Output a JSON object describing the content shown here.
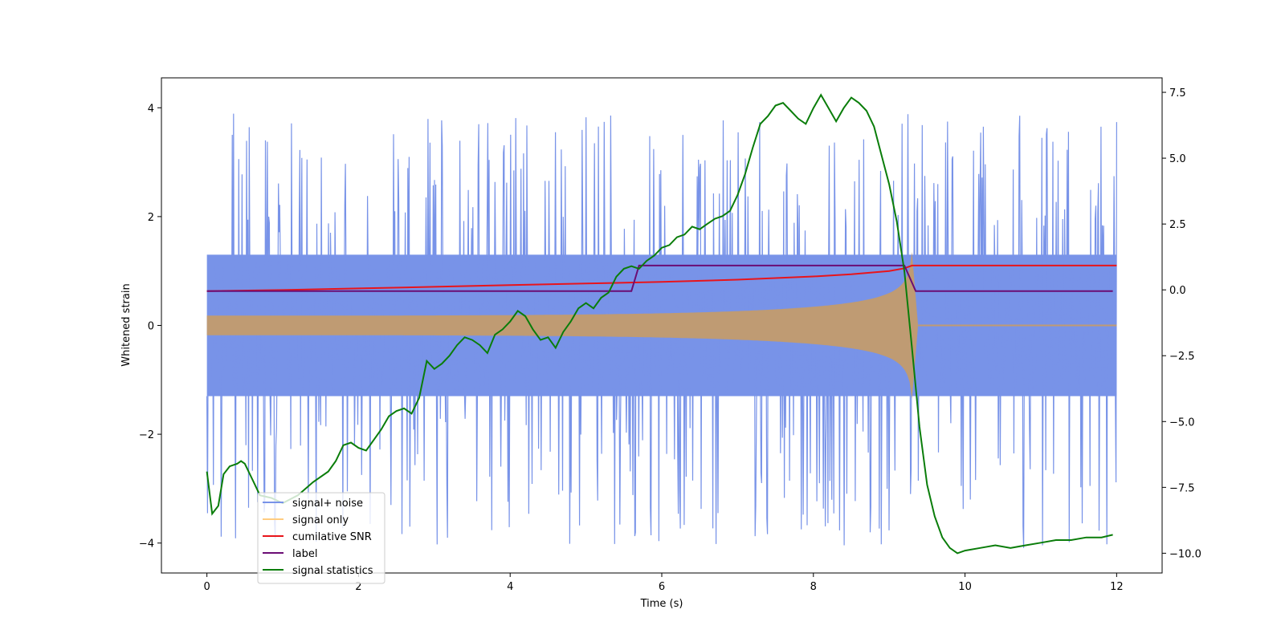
{
  "chart_data": {
    "type": "line",
    "title": "",
    "xlabel": "Time (s)",
    "ylabel": "Whitened strain",
    "ylabel_right": "",
    "xlim": [
      -0.6,
      12.6
    ],
    "ylim": [
      -4.55,
      4.55
    ],
    "ylim_right": [
      -10.75,
      8.05
    ],
    "xticks": [
      0,
      2,
      4,
      6,
      8,
      10,
      12
    ],
    "xtick_labels": [
      "0",
      "2",
      "4",
      "6",
      "8",
      "10",
      "12"
    ],
    "yticks": [
      -4,
      -2,
      0,
      2,
      4
    ],
    "ytick_labels": [
      "−4",
      "−2",
      "0",
      "2",
      "4"
    ],
    "yticks_right": [
      -10.0,
      -7.5,
      -5.0,
      -2.5,
      0.0,
      2.5,
      5.0,
      7.5
    ],
    "ytick_labels_right": [
      "−10.0",
      "−7.5",
      "−5.0",
      "−2.5",
      "0.0",
      "2.5",
      "5.0",
      "7.5"
    ],
    "grid": false,
    "legend_position": "lower-left",
    "series": [
      {
        "name": "signal+ noise",
        "axis": "left",
        "color": "#7893e8",
        "kind": "noise",
        "x_range": [
          0,
          12
        ],
        "samples": 1400,
        "noise_band": 1.3,
        "peak_max": 3.9,
        "peak_min": -4.1
      },
      {
        "name": "signal only",
        "axis": "left",
        "color": "#ffcc80",
        "fill": "#bf9b73",
        "kind": "chirp",
        "x_range": [
          0,
          12
        ],
        "merger_time": 9.3,
        "amplitude_start": 0.09,
        "amplitude_peak": 1.35
      },
      {
        "name": "cumilative SNR",
        "axis": "left",
        "color": "#e8141b",
        "x": [
          0,
          1,
          2,
          3,
          4,
          5,
          6,
          7,
          8,
          8.5,
          9,
          9.2,
          9.3,
          9.4,
          10,
          11,
          12
        ],
        "values": [
          0.63,
          0.65,
          0.68,
          0.71,
          0.74,
          0.77,
          0.8,
          0.84,
          0.9,
          0.94,
          1.0,
          1.05,
          1.1,
          1.1,
          1.1,
          1.1,
          1.1
        ]
      },
      {
        "name": "label",
        "axis": "left",
        "color": "#6b0d74",
        "x": [
          0,
          5.6,
          5.7,
          9.2,
          9.35,
          11.95
        ],
        "values": [
          0.63,
          0.63,
          1.1,
          1.1,
          0.63,
          0.63
        ]
      },
      {
        "name": "signal statistics",
        "axis": "right",
        "color": "#0a7d0a",
        "x": [
          0,
          0.07,
          0.15,
          0.22,
          0.3,
          0.4,
          0.45,
          0.5,
          0.6,
          0.7,
          0.85,
          1.0,
          1.2,
          1.4,
          1.6,
          1.7,
          1.8,
          1.9,
          2.0,
          2.1,
          2.2,
          2.3,
          2.4,
          2.5,
          2.6,
          2.7,
          2.8,
          2.9,
          3.0,
          3.1,
          3.2,
          3.3,
          3.4,
          3.5,
          3.6,
          3.7,
          3.8,
          3.9,
          4.0,
          4.1,
          4.2,
          4.3,
          4.4,
          4.5,
          4.6,
          4.7,
          4.8,
          4.9,
          5.0,
          5.1,
          5.2,
          5.3,
          5.4,
          5.5,
          5.6,
          5.7,
          5.8,
          5.9,
          6.0,
          6.1,
          6.2,
          6.3,
          6.4,
          6.5,
          6.6,
          6.7,
          6.8,
          6.9,
          7.0,
          7.1,
          7.2,
          7.3,
          7.4,
          7.5,
          7.6,
          7.7,
          7.8,
          7.9,
          8.0,
          8.1,
          8.2,
          8.3,
          8.4,
          8.5,
          8.6,
          8.7,
          8.8,
          8.9,
          9.0,
          9.1,
          9.2,
          9.3,
          9.4,
          9.5,
          9.6,
          9.7,
          9.8,
          9.9,
          10.0,
          10.2,
          10.4,
          10.6,
          10.8,
          11.0,
          11.2,
          11.4,
          11.6,
          11.8,
          11.95
        ],
        "values": [
          -6.9,
          -8.5,
          -8.2,
          -7.0,
          -6.7,
          -6.6,
          -6.5,
          -6.6,
          -7.2,
          -7.8,
          -7.9,
          -8.1,
          -7.8,
          -7.3,
          -6.9,
          -6.5,
          -5.9,
          -5.8,
          -6.0,
          -6.1,
          -5.7,
          -5.3,
          -4.8,
          -4.6,
          -4.5,
          -4.7,
          -4.1,
          -2.7,
          -3.0,
          -2.8,
          -2.5,
          -2.1,
          -1.8,
          -1.9,
          -2.1,
          -2.4,
          -1.7,
          -1.5,
          -1.2,
          -0.8,
          -1.0,
          -1.5,
          -1.9,
          -1.8,
          -2.2,
          -1.6,
          -1.2,
          -0.7,
          -0.5,
          -0.7,
          -0.3,
          -0.1,
          0.5,
          0.8,
          0.9,
          0.8,
          1.1,
          1.3,
          1.6,
          1.7,
          2.0,
          2.1,
          2.4,
          2.3,
          2.5,
          2.7,
          2.8,
          3.0,
          3.6,
          4.4,
          5.4,
          6.3,
          6.6,
          7.0,
          7.1,
          6.8,
          6.5,
          6.3,
          6.9,
          7.4,
          6.9,
          6.4,
          6.9,
          7.3,
          7.1,
          6.8,
          6.2,
          5.1,
          4.0,
          2.6,
          0.7,
          -2.2,
          -5.2,
          -7.4,
          -8.6,
          -9.4,
          -9.8,
          -10.0,
          -9.9,
          -9.8,
          -9.7,
          -9.8,
          -9.7,
          -9.6,
          -9.5,
          -9.5,
          -9.4,
          -9.4,
          -9.3
        ]
      }
    ]
  }
}
